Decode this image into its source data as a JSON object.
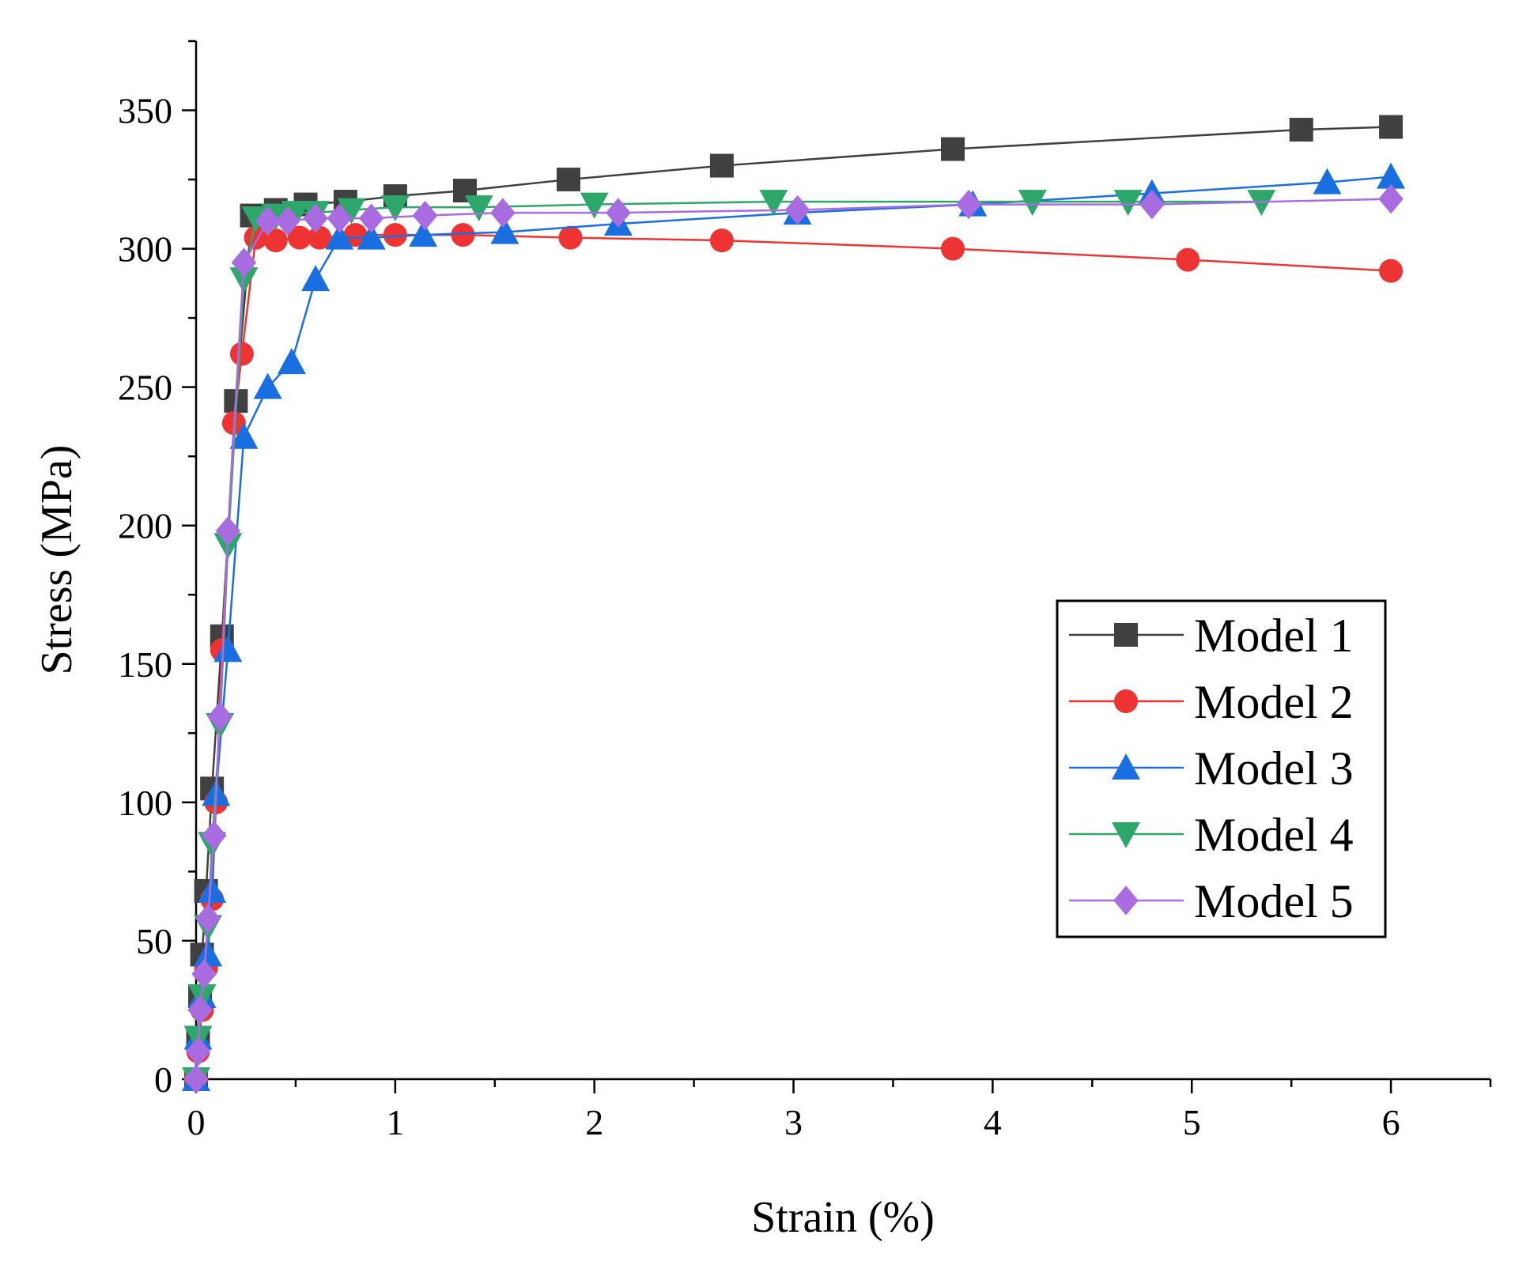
{
  "chart_data": {
    "type": "line",
    "title": "",
    "xlabel": "Strain (%)",
    "ylabel": "Stress (MPa)",
    "xlim": [
      0,
      6.5
    ],
    "ylim": [
      0,
      375
    ],
    "xticks": [
      0,
      1,
      2,
      3,
      4,
      5,
      6
    ],
    "yticks": [
      0,
      50,
      100,
      150,
      200,
      250,
      300,
      350
    ],
    "grid": false,
    "legend_position": "center-right",
    "series": [
      {
        "name": "Model 1",
        "color": "#404040",
        "marker": "square",
        "x": [
          0,
          0.01,
          0.02,
          0.03,
          0.05,
          0.08,
          0.13,
          0.2,
          0.28,
          0.4,
          0.55,
          0.75,
          1.0,
          1.35,
          1.87,
          2.64,
          3.8,
          5.55,
          6.0
        ],
        "y": [
          0,
          15,
          30,
          45,
          68,
          105,
          160,
          245,
          312,
          314,
          316,
          317,
          319,
          321,
          325,
          330,
          336,
          343,
          344
        ]
      },
      {
        "name": "Model 2",
        "color": "#ee3333",
        "marker": "circle",
        "x": [
          0,
          0.01,
          0.03,
          0.05,
          0.08,
          0.1,
          0.13,
          0.19,
          0.23,
          0.3,
          0.4,
          0.52,
          0.62,
          0.8,
          1.0,
          1.34,
          1.88,
          2.64,
          3.8,
          4.98,
          6.0
        ],
        "y": [
          0,
          10,
          25,
          40,
          65,
          100,
          155,
          237,
          262,
          304,
          303,
          304,
          304,
          305,
          305,
          305,
          304,
          303,
          300,
          296,
          292
        ]
      },
      {
        "name": "Model 3",
        "color": "#1a6fe0",
        "marker": "triangle-up",
        "x": [
          0,
          0.01,
          0.03,
          0.06,
          0.08,
          0.1,
          0.16,
          0.24,
          0.36,
          0.48,
          0.6,
          0.72,
          0.88,
          1.14,
          1.55,
          2.12,
          3.02,
          3.9,
          4.8,
          5.68,
          6.0
        ],
        "y": [
          0,
          15,
          30,
          45,
          68,
          103,
          155,
          232,
          250,
          259,
          289,
          304,
          304,
          305,
          306,
          309,
          313,
          316,
          320,
          324,
          326
        ]
      },
      {
        "name": "Model 4",
        "color": "#2ea86a",
        "marker": "triangle-down",
        "x": [
          0,
          0.01,
          0.03,
          0.06,
          0.08,
          0.12,
          0.16,
          0.24,
          0.3,
          0.4,
          0.5,
          0.6,
          0.78,
          1.0,
          1.42,
          2.0,
          2.9,
          4.2,
          4.68,
          5.35
        ],
        "y": [
          0,
          15,
          30,
          55,
          85,
          128,
          193,
          289,
          311,
          312,
          313,
          313,
          314,
          315,
          315,
          316,
          317,
          317,
          317,
          317
        ]
      },
      {
        "name": "Model 5",
        "color": "#a96be0",
        "marker": "diamond",
        "x": [
          0,
          0.01,
          0.02,
          0.04,
          0.06,
          0.09,
          0.12,
          0.16,
          0.24,
          0.36,
          0.46,
          0.6,
          0.72,
          0.88,
          1.15,
          1.54,
          2.12,
          3.02,
          3.88,
          4.8,
          6.0
        ],
        "y": [
          0,
          10,
          25,
          38,
          58,
          88,
          131,
          198,
          295,
          310,
          310,
          311,
          311,
          311,
          312,
          313,
          313,
          314,
          316,
          316,
          318
        ]
      }
    ]
  }
}
